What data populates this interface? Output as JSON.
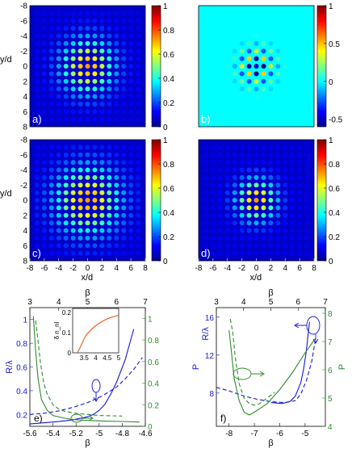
{
  "map_panels": [
    {
      "id": "a",
      "label": "a)",
      "kind": "lattice_intensity",
      "spread": 2.6,
      "colorbar": {
        "min": 0,
        "max": 1,
        "ticks": [
          "1",
          "0.8",
          "0.6",
          "0.4",
          "0.2",
          "0"
        ]
      },
      "xticks": [],
      "yticks": [
        "-8",
        "-6",
        "-4",
        "-2",
        "0",
        "2",
        "4",
        "6",
        "8"
      ],
      "xlabel": "",
      "ylabel": "y/d"
    },
    {
      "id": "b",
      "label": "b)",
      "kind": "lattice_signed",
      "spread": 1.6,
      "colorbar": {
        "min": -0.6,
        "max": 1,
        "ticks": [
          "1",
          "0.5",
          "0",
          "-0.5"
        ]
      },
      "xticks": [],
      "yticks": [],
      "xlabel": "",
      "ylabel": ""
    },
    {
      "id": "c",
      "label": "c)",
      "kind": "lattice_intensity",
      "spread": 3.2,
      "colorbar": {
        "min": 0,
        "max": 1,
        "ticks": [
          "1",
          "0.8",
          "0.6",
          "0.4",
          "0.2",
          "0"
        ]
      },
      "xticks": [
        "-8",
        "-6",
        "-4",
        "-2",
        "0",
        "2",
        "4",
        "6",
        "8"
      ],
      "yticks": [
        "-8",
        "-6",
        "-4",
        "-2",
        "0",
        "2",
        "4",
        "6",
        "8"
      ],
      "xlabel": "x/d",
      "ylabel": "y/d"
    },
    {
      "id": "d",
      "label": "d)",
      "kind": "lattice_intensity",
      "spread": 2.0,
      "colorbar": {
        "min": 0,
        "max": 1,
        "ticks": [
          "1",
          "0.8",
          "0.6",
          "0.4",
          "0.2",
          "0"
        ]
      },
      "xticks": [
        "-8",
        "-6",
        "-4",
        "-2",
        "0",
        "2",
        "4",
        "6",
        "8"
      ],
      "yticks": [],
      "xlabel": "x/d",
      "ylabel": ""
    }
  ],
  "chart_data": [
    {
      "type": "line",
      "panel_label": "e)",
      "xlabel": "β",
      "xlim": [
        -5.6,
        -4.6
      ],
      "xticks": [
        "-5.6",
        "-5.4",
        "-5.2",
        "-5",
        "-4.8",
        "-4.6"
      ],
      "top_xlabel": "β",
      "top_xlim": [
        3,
        7
      ],
      "top_xticks": [
        "3",
        "4",
        "5",
        "6",
        "7"
      ],
      "ylabel_left": "R/λ",
      "ylim_left": [
        0.1,
        1.1
      ],
      "yticks_left": [
        "1",
        "0.8",
        "0.6",
        "0.4",
        "0.2"
      ],
      "ylabel_right": "",
      "ylim_right": [
        0,
        1.1
      ],
      "yticks_right": [
        "1",
        "0.8",
        "0.6",
        "0.4",
        "0.2",
        "0"
      ],
      "series": [
        {
          "axis": "top-left",
          "style": "solid",
          "color": "#1515d8",
          "x": [
            3.0,
            3.5,
            4.0,
            4.5,
            5.0,
            5.2,
            5.4,
            5.6,
            5.8,
            6.0,
            6.3,
            6.6
          ],
          "y": [
            0.12,
            0.13,
            0.14,
            0.155,
            0.18,
            0.2,
            0.235,
            0.285,
            0.37,
            0.47,
            0.66,
            0.92
          ]
        },
        {
          "axis": "top-left",
          "style": "dashed",
          "color": "#1515d8",
          "x": [
            3.0,
            3.5,
            4.0,
            4.5,
            5.0,
            5.5,
            6.0,
            6.3,
            6.6,
            6.9
          ],
          "y": [
            0.2,
            0.21,
            0.23,
            0.26,
            0.3,
            0.355,
            0.43,
            0.5,
            0.58,
            0.68
          ]
        },
        {
          "axis": "bottom-right",
          "style": "solid",
          "color": "#2d8a2d",
          "x": [
            -5.57,
            -5.55,
            -5.53,
            -5.5,
            -5.45,
            -5.4,
            -5.3,
            -5.2,
            -5.0,
            -4.8,
            -4.65
          ],
          "y": [
            1.02,
            0.7,
            0.45,
            0.25,
            0.15,
            0.1,
            0.075,
            0.06,
            0.05,
            0.045,
            0.04
          ]
        },
        {
          "axis": "bottom-right",
          "style": "dashed",
          "color": "#2d8a2d",
          "x": [
            -5.55,
            -5.53,
            -5.51,
            -5.48,
            -5.45,
            -5.4,
            -5.35,
            -5.3,
            -5.2,
            -5.1,
            -5.0,
            -4.8
          ],
          "y": [
            0.98,
            0.8,
            0.6,
            0.4,
            0.3,
            0.2,
            0.16,
            0.14,
            0.12,
            0.11,
            0.1,
            0.095
          ]
        }
      ],
      "inset": {
        "ylabel": "δ n_nl",
        "xlim": [
          3,
          5
        ],
        "ylim": [
          0,
          0.22
        ],
        "xticks": [
          "3.5",
          "4",
          "4.5",
          "5"
        ],
        "yticks": [
          "0.2",
          "0.1",
          "0"
        ],
        "x": [
          3.2,
          3.3,
          3.4,
          3.5,
          3.6,
          3.8,
          4.0,
          4.2,
          4.4,
          4.6,
          4.8,
          5.0
        ],
        "y": [
          0.0,
          0.02,
          0.045,
          0.07,
          0.09,
          0.115,
          0.135,
          0.15,
          0.163,
          0.173,
          0.18,
          0.186
        ],
        "color": "#e05a1a"
      }
    },
    {
      "type": "line",
      "panel_label": "f)",
      "xlabel": "β",
      "xlim": [
        -8.5,
        -4.2
      ],
      "xticks": [
        "-8",
        "-7",
        "-6",
        "-5"
      ],
      "top_xlabel": "β",
      "top_xlim": [
        3,
        7
      ],
      "top_xticks": [
        "3",
        "4",
        "5",
        "6",
        "7"
      ],
      "ylabel_left": "P",
      "ylim_left": [
        4.5,
        17
      ],
      "yticks_left": [
        "16",
        "12",
        "8"
      ],
      "ylabel_right": "P",
      "ylim_right": [
        4,
        8.2
      ],
      "yticks_right": [
        "8",
        "7",
        "6",
        "5",
        "4"
      ],
      "ylabel_mid": "R/λ",
      "series": [
        {
          "axis": "top-left",
          "style": "solid",
          "color": "#1515d8",
          "x": [
            5.0,
            5.4,
            5.7,
            5.9,
            6.1,
            6.2,
            6.3,
            6.35,
            6.42
          ],
          "y": [
            7.0,
            6.9,
            7.1,
            7.7,
            9.1,
            10.5,
            12.4,
            13.8,
            15.5
          ]
        },
        {
          "axis": "top-left",
          "style": "dashed",
          "color": "#1515d8",
          "x": [
            3.0,
            3.5,
            4.0,
            4.5,
            5.0,
            5.5,
            5.9,
            6.1,
            6.3,
            6.5,
            6.62
          ],
          "y": [
            8.6,
            8.2,
            7.7,
            7.35,
            7.1,
            7.0,
            7.2,
            7.9,
            9.3,
            11.3,
            13.4
          ]
        },
        {
          "axis": "bottom-right",
          "style": "solid",
          "color": "#2d8a2d",
          "x": [
            -8.0,
            -7.9,
            -7.8,
            -7.6,
            -7.4,
            -7.2,
            -7.0,
            -6.5,
            -6.0,
            -5.5,
            -5.0,
            -4.6
          ],
          "y": [
            7.4,
            6.6,
            5.7,
            4.9,
            4.5,
            4.4,
            4.5,
            4.8,
            5.3,
            5.9,
            6.6,
            7.1
          ]
        },
        {
          "axis": "bottom-right",
          "style": "dashed",
          "color": "#2d8a2d",
          "x": [
            -7.95,
            -7.85,
            -7.75,
            -7.6,
            -7.4,
            -7.2,
            -7.0,
            -6.8,
            -6.5,
            -6.2
          ],
          "y": [
            7.8,
            7.3,
            6.4,
            5.5,
            5.0,
            4.8,
            4.75,
            4.8,
            5.0,
            5.2
          ]
        }
      ]
    }
  ]
}
